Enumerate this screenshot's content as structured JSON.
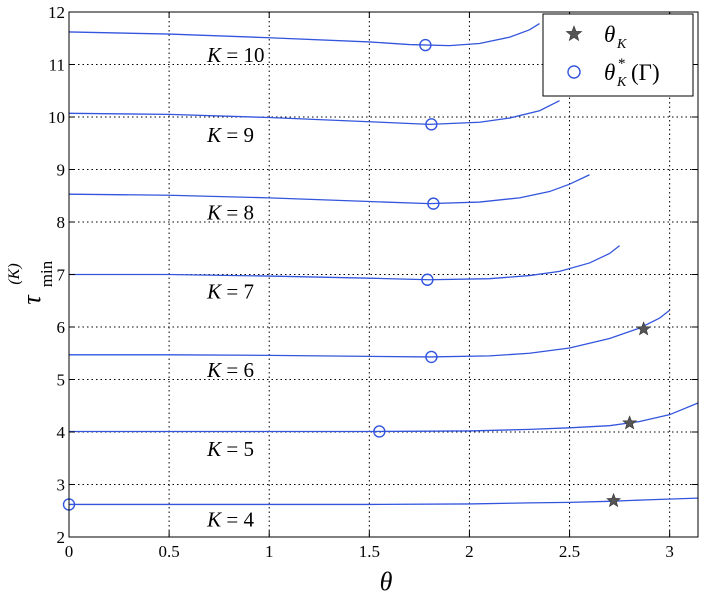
{
  "chart_data": {
    "type": "line",
    "xlabel": "θ",
    "ylabel_main": "τ",
    "ylabel_sup": "(K)",
    "ylabel_sub": "min",
    "xlim": [
      0,
      3.14159
    ],
    "ylim": [
      2,
      12
    ],
    "xticks": [
      0,
      0.5,
      1,
      1.5,
      2,
      2.5,
      3
    ],
    "xtick_labels": [
      "0",
      "0.5",
      "1",
      "1.5",
      "2",
      "2.5",
      "3"
    ],
    "yticks": [
      2,
      3,
      4,
      5,
      6,
      7,
      8,
      9,
      10,
      11,
      12
    ],
    "ytick_labels": [
      "2",
      "3",
      "4",
      "5",
      "6",
      "7",
      "8",
      "9",
      "10",
      "11",
      "12"
    ],
    "grid": true,
    "line_color": "#3355dd",
    "star_color": "#555555",
    "legend": {
      "position": "top-right",
      "entries": [
        {
          "marker": "star",
          "label_main": "θ",
          "label_sub": "K",
          "label_sup": "",
          "label_suffix": ""
        },
        {
          "marker": "circle",
          "label_main": "θ",
          "label_sub": "K",
          "label_sup": "*",
          "label_suffix": "(Γ)"
        }
      ]
    },
    "series": [
      {
        "label": "K = 4",
        "x": [
          0,
          0.5,
          1.0,
          1.5,
          2.0,
          2.3,
          2.5,
          2.7,
          2.9,
          3.14
        ],
        "y": [
          2.62,
          2.62,
          2.62,
          2.62,
          2.63,
          2.65,
          2.66,
          2.68,
          2.71,
          2.74
        ],
        "label_x": 0.57,
        "label_y": 2.35,
        "circle": [
          0,
          2.62
        ],
        "star": [
          2.72,
          2.69
        ]
      },
      {
        "label": "K = 5",
        "x": [
          0,
          0.5,
          1.0,
          1.5,
          2.0,
          2.3,
          2.5,
          2.7,
          2.85,
          3.0,
          3.14
        ],
        "y": [
          4.01,
          4.01,
          4.01,
          4.01,
          4.02,
          4.05,
          4.08,
          4.12,
          4.2,
          4.33,
          4.55
        ],
        "label_x": 0.57,
        "label_y": 3.7,
        "circle": [
          1.55,
          4.01
        ],
        "star": [
          2.8,
          4.17
        ]
      },
      {
        "label": "K = 6",
        "x": [
          0,
          0.5,
          1.0,
          1.5,
          1.8,
          2.1,
          2.3,
          2.5,
          2.7,
          2.85,
          2.95,
          3.0
        ],
        "y": [
          5.47,
          5.47,
          5.46,
          5.44,
          5.43,
          5.45,
          5.5,
          5.6,
          5.78,
          5.98,
          6.17,
          6.32
        ],
        "label_x": 0.57,
        "label_y": 5.2,
        "circle": [
          1.81,
          5.43
        ],
        "star": [
          2.87,
          5.96
        ]
      },
      {
        "label": "K = 7",
        "x": [
          0,
          0.5,
          1.0,
          1.5,
          1.8,
          2.1,
          2.3,
          2.45,
          2.6,
          2.7,
          2.75
        ],
        "y": [
          7.0,
          7.0,
          6.97,
          6.93,
          6.9,
          6.92,
          6.98,
          7.06,
          7.22,
          7.4,
          7.55
        ],
        "label_x": 0.57,
        "label_y": 6.7,
        "circle": [
          1.79,
          6.9
        ]
      },
      {
        "label": "K = 8",
        "x": [
          0,
          0.5,
          1.0,
          1.5,
          1.8,
          2.05,
          2.25,
          2.4,
          2.5,
          2.6
        ],
        "y": [
          8.53,
          8.51,
          8.46,
          8.39,
          8.35,
          8.38,
          8.46,
          8.58,
          8.72,
          8.9
        ],
        "label_x": 0.57,
        "label_y": 8.2,
        "circle": [
          1.82,
          8.35
        ]
      },
      {
        "label": "K = 9",
        "x": [
          0,
          0.5,
          1.0,
          1.5,
          1.8,
          2.05,
          2.2,
          2.35,
          2.45
        ],
        "y": [
          10.07,
          10.05,
          9.99,
          9.91,
          9.86,
          9.9,
          9.98,
          10.12,
          10.31
        ],
        "label_x": 0.57,
        "label_y": 9.68,
        "circle": [
          1.81,
          9.86
        ]
      },
      {
        "label": "K = 10",
        "x": [
          0,
          0.5,
          1.0,
          1.5,
          1.7,
          1.9,
          2.05,
          2.2,
          2.3,
          2.35
        ],
        "y": [
          11.62,
          11.58,
          11.51,
          11.43,
          11.38,
          11.36,
          11.4,
          11.52,
          11.66,
          11.78
        ],
        "label_x": 0.57,
        "label_y": 11.2,
        "circle": [
          1.78,
          11.37
        ]
      }
    ]
  }
}
